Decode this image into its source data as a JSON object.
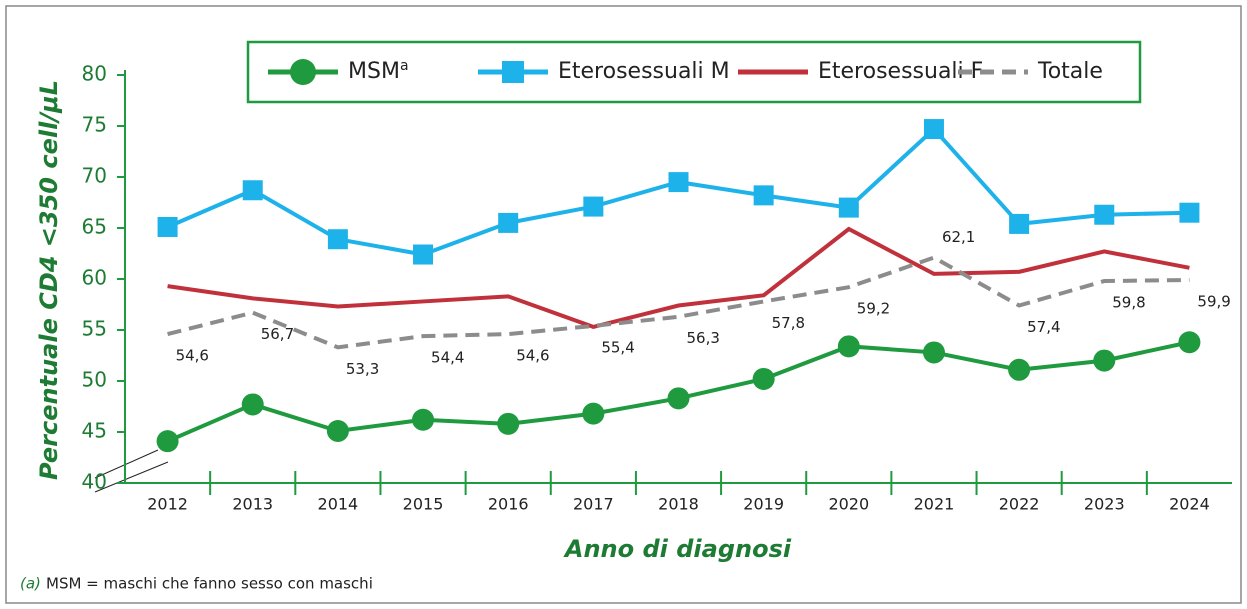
{
  "chart_data": {
    "type": "line",
    "y_label": "Percentuale CD4 <350 cell/μL",
    "x_label": "Anno di diagnosi",
    "footnote_marker": "(a)",
    "footnote": "MSM = maschi che fanno sesso con maschi",
    "legend_note": "a",
    "categories": [
      "2012",
      "2013",
      "2014",
      "2015",
      "2016",
      "2017",
      "2018",
      "2019",
      "2020",
      "2021",
      "2022",
      "2023",
      "2024"
    ],
    "ylim": [
      40,
      80
    ],
    "yticks": [
      40,
      45,
      50,
      55,
      60,
      65,
      70,
      75,
      80
    ],
    "series": [
      {
        "name": "MSM",
        "color": "#1f9a3f",
        "marker": "circle",
        "values": [
          44.1,
          47.7,
          45.1,
          46.2,
          45.8,
          46.8,
          48.3,
          50.2,
          53.4,
          52.8,
          51.1,
          52.0,
          53.8
        ]
      },
      {
        "name": "Eterosessuali M",
        "color": "#1eb2ea",
        "marker": "square",
        "values": [
          65.1,
          68.7,
          63.9,
          62.4,
          65.5,
          67.1,
          69.5,
          68.2,
          67.0,
          74.7,
          65.4,
          66.3,
          66.5
        ]
      },
      {
        "name": "Eterosessuali F",
        "color": "#c0313b",
        "marker": "none",
        "values": [
          59.3,
          58.1,
          57.3,
          57.8,
          58.3,
          55.3,
          57.4,
          58.4,
          64.9,
          60.5,
          60.7,
          62.7,
          61.1
        ]
      },
      {
        "name": "Totale",
        "color": "#8c8c8c",
        "marker": "none",
        "dashed": true,
        "values": [
          54.6,
          56.7,
          53.3,
          54.4,
          54.6,
          55.4,
          56.3,
          57.8,
          59.2,
          62.1,
          57.4,
          59.8,
          59.9
        ],
        "value_labels": [
          "54,6",
          "56,7",
          "53,3",
          "54,4",
          "54,6",
          "55,4",
          "56,3",
          "57,8",
          "59,2",
          "62,1",
          "57,4",
          "59,8",
          "59,9"
        ]
      }
    ]
  }
}
